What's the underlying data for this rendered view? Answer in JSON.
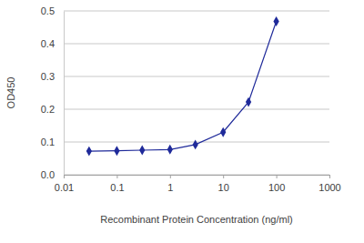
{
  "chart_data": {
    "type": "line",
    "x_label": "Recombinant Protein Concentration (ng/ml)",
    "y_label": "OD450",
    "x": [
      0.03,
      0.1,
      0.3,
      1,
      3,
      10,
      30,
      100
    ],
    "values": [
      0.072,
      0.073,
      0.075,
      0.077,
      0.092,
      0.13,
      0.222,
      0.468
    ],
    "color": "#1f2a9a",
    "marker": "diamond",
    "log": "x",
    "xlim": [
      0.01,
      1000
    ],
    "xticks": [
      0.01,
      0.1,
      1,
      10,
      100,
      1000
    ],
    "ylim": [
      0,
      0.5
    ],
    "yticks": [
      {
        "value": 0,
        "label": "0.0"
      },
      0.1,
      0.2,
      0.3,
      0.4,
      0.5
    ],
    "grid": true
  }
}
